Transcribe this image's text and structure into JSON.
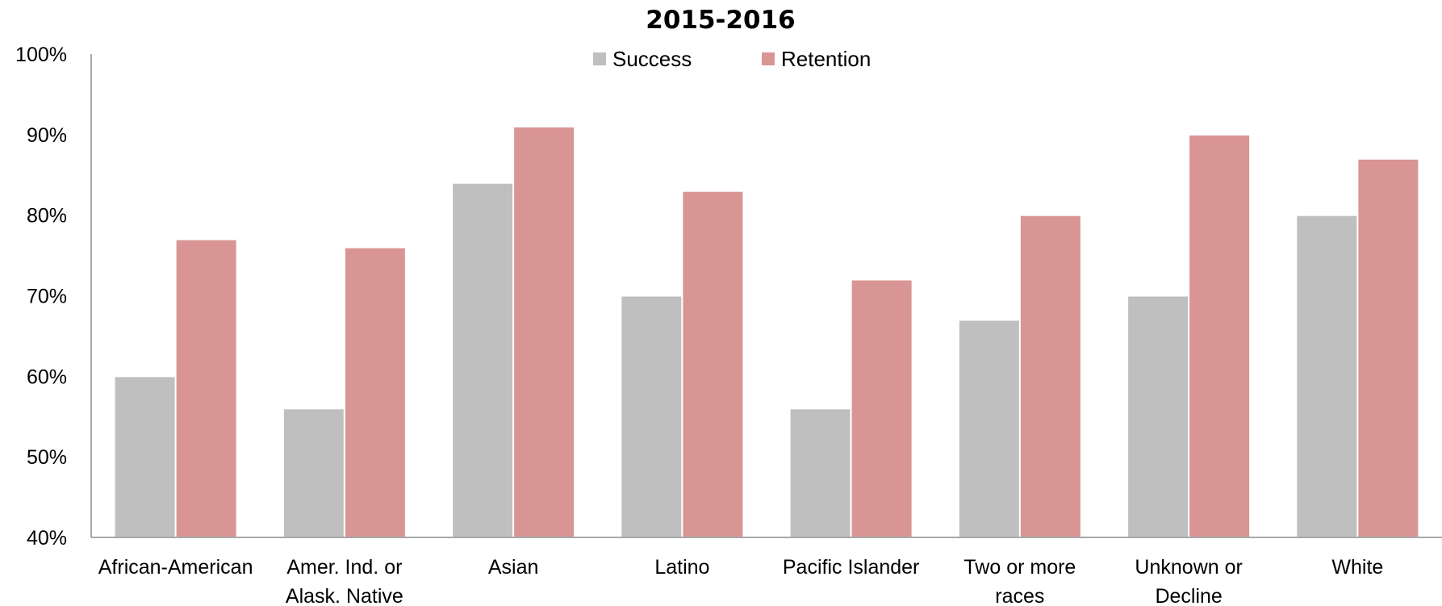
{
  "chart_data": {
    "type": "bar",
    "title": "2015-2016",
    "categories": [
      [
        "African-American"
      ],
      [
        "Amer. Ind. or",
        "Alask. Native"
      ],
      [
        "Asian"
      ],
      [
        "Latino"
      ],
      [
        "Pacific Islander"
      ],
      [
        "Two or more",
        "races"
      ],
      [
        "Unknown or",
        "Decline"
      ],
      [
        "White"
      ]
    ],
    "series": [
      {
        "name": "Success",
        "color": "#bfbfbf",
        "values": [
          60,
          56,
          84,
          70,
          56,
          67,
          70,
          80
        ]
      },
      {
        "name": "Retention",
        "color": "#d99594",
        "values": [
          77,
          76,
          91,
          83,
          72,
          80,
          90,
          87
        ]
      }
    ],
    "ylim": [
      40,
      100
    ],
    "yticks": [
      40,
      50,
      60,
      70,
      80,
      90,
      100
    ],
    "ytick_labels": [
      "40%",
      "50%",
      "60%",
      "70%",
      "80%",
      "90%",
      "100%"
    ],
    "legend_position": "top-center",
    "grid": false,
    "xlabel": "",
    "ylabel": ""
  }
}
